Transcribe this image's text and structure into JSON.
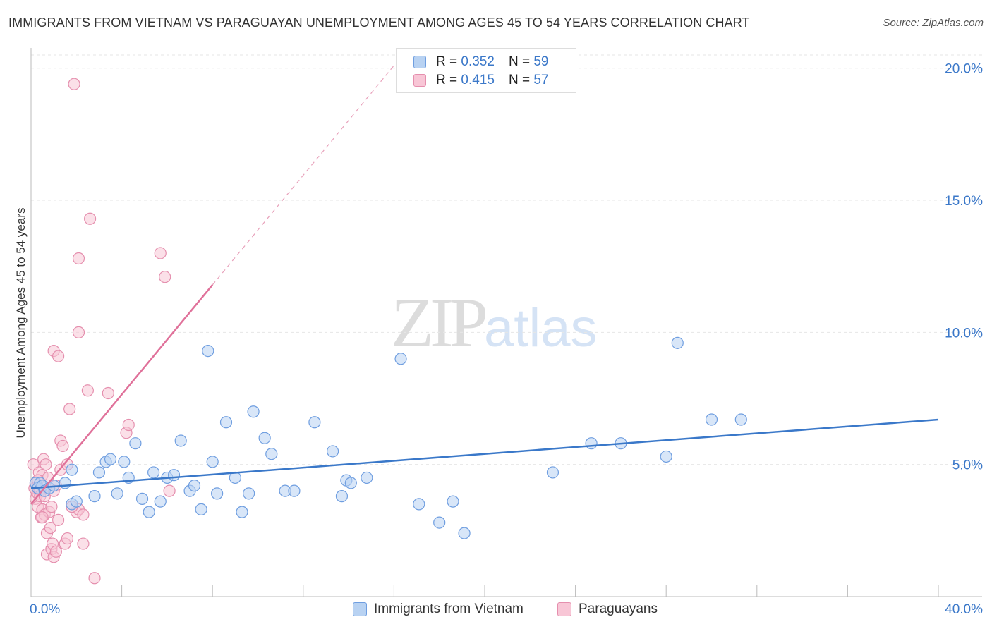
{
  "header": {
    "title": "IMMIGRANTS FROM VIETNAM VS PARAGUAYAN UNEMPLOYMENT AMONG AGES 45 TO 54 YEARS CORRELATION CHART",
    "source": "Source: ZipAtlas.com"
  },
  "watermark": {
    "zip": "ZIP",
    "atlas": "atlas"
  },
  "legend": {
    "r_label": "R =",
    "n_label": "N =",
    "vietnam": {
      "r": "0.352",
      "n": "59"
    },
    "paraguay": {
      "r": "0.415",
      "n": "57"
    }
  },
  "colors": {
    "vietnam_fill": "#b8d2f2",
    "vietnam_stroke": "#6f9ee0",
    "vietnam_line": "#3a78c9",
    "paraguay_fill": "#f8c6d6",
    "paraguay_stroke": "#e58fae",
    "paraguay_line": "#e0719a",
    "tick_label": "#3b78c9",
    "grid": "#e6e6e6"
  },
  "chart_data": {
    "type": "scatter",
    "title": "IMMIGRANTS FROM VIETNAM VS PARAGUAYAN UNEMPLOYMENT AMONG AGES 45 TO 54 YEARS CORRELATION CHART",
    "xlabel": "",
    "ylabel": "Unemployment Among Ages 45 to 54 years",
    "xlim": [
      0,
      40
    ],
    "ylim": [
      0,
      20.5
    ],
    "x_tick_labels": [
      "0.0%",
      "40.0%"
    ],
    "y_ticks": [
      5,
      10,
      15,
      20
    ],
    "y_tick_labels": [
      "5.0%",
      "10.0%",
      "15.0%",
      "20.0%"
    ],
    "series": [
      {
        "name": "Immigrants from Vietnam",
        "r": 0.352,
        "n": 59,
        "trend": {
          "x": [
            0,
            40
          ],
          "y": [
            4.1,
            6.7
          ]
        },
        "points": [
          [
            0.2,
            4.3
          ],
          [
            0.3,
            4.1
          ],
          [
            0.4,
            4.3
          ],
          [
            0.5,
            4.2
          ],
          [
            0.6,
            4.0
          ],
          [
            0.8,
            4.1
          ],
          [
            1.0,
            4.2
          ],
          [
            1.5,
            4.3
          ],
          [
            1.8,
            3.5
          ],
          [
            2.0,
            3.6
          ],
          [
            1.8,
            4.8
          ],
          [
            2.8,
            3.8
          ],
          [
            3.0,
            4.7
          ],
          [
            3.3,
            5.1
          ],
          [
            3.5,
            5.2
          ],
          [
            3.8,
            3.9
          ],
          [
            4.1,
            5.1
          ],
          [
            4.3,
            4.5
          ],
          [
            4.6,
            5.8
          ],
          [
            4.9,
            3.7
          ],
          [
            5.2,
            3.2
          ],
          [
            5.4,
            4.7
          ],
          [
            5.7,
            3.6
          ],
          [
            6.0,
            4.5
          ],
          [
            6.3,
            4.6
          ],
          [
            6.6,
            5.9
          ],
          [
            7.0,
            4.0
          ],
          [
            7.2,
            4.2
          ],
          [
            7.5,
            3.3
          ],
          [
            7.8,
            9.3
          ],
          [
            8.0,
            5.1
          ],
          [
            8.2,
            3.9
          ],
          [
            8.6,
            6.6
          ],
          [
            9.0,
            4.5
          ],
          [
            9.3,
            3.2
          ],
          [
            9.6,
            3.9
          ],
          [
            9.8,
            7.0
          ],
          [
            10.3,
            6.0
          ],
          [
            10.6,
            5.4
          ],
          [
            11.2,
            4.0
          ],
          [
            11.6,
            4.0
          ],
          [
            12.5,
            6.6
          ],
          [
            13.3,
            5.5
          ],
          [
            13.7,
            3.8
          ],
          [
            13.9,
            4.4
          ],
          [
            14.1,
            4.3
          ],
          [
            14.8,
            4.5
          ],
          [
            16.3,
            9.0
          ],
          [
            17.1,
            3.5
          ],
          [
            18.0,
            2.8
          ],
          [
            18.6,
            3.6
          ],
          [
            19.1,
            2.4
          ],
          [
            23.0,
            4.7
          ],
          [
            24.7,
            5.8
          ],
          [
            26.0,
            5.8
          ],
          [
            28.0,
            5.3
          ],
          [
            28.5,
            9.6
          ],
          [
            30.0,
            6.7
          ],
          [
            31.3,
            6.7
          ]
        ]
      },
      {
        "name": "Paraguayans",
        "r": 0.415,
        "n": 57,
        "trend": {
          "x": [
            0,
            8
          ],
          "y": [
            3.5,
            11.8
          ],
          "x_dashed_end": 16
        },
        "points": [
          [
            0.1,
            5.0
          ],
          [
            0.15,
            4.1
          ],
          [
            0.2,
            4.3
          ],
          [
            0.2,
            3.7
          ],
          [
            0.3,
            3.4
          ],
          [
            0.3,
            3.9
          ],
          [
            0.35,
            4.7
          ],
          [
            0.4,
            4.0
          ],
          [
            0.4,
            3.8
          ],
          [
            0.45,
            3.0
          ],
          [
            0.5,
            3.3
          ],
          [
            0.5,
            4.6
          ],
          [
            0.55,
            5.2
          ],
          [
            0.6,
            3.1
          ],
          [
            0.6,
            3.8
          ],
          [
            0.65,
            5.0
          ],
          [
            0.7,
            2.4
          ],
          [
            0.7,
            1.6
          ],
          [
            0.75,
            4.5
          ],
          [
            0.8,
            3.2
          ],
          [
            0.85,
            2.6
          ],
          [
            0.9,
            1.8
          ],
          [
            0.9,
            3.4
          ],
          [
            0.95,
            2.0
          ],
          [
            1.0,
            1.5
          ],
          [
            1.0,
            9.3
          ],
          [
            1.1,
            4.2
          ],
          [
            1.2,
            2.9
          ],
          [
            1.1,
            1.7
          ],
          [
            1.2,
            9.1
          ],
          [
            1.3,
            4.8
          ],
          [
            1.3,
            5.9
          ],
          [
            1.4,
            5.7
          ],
          [
            1.5,
            2.0
          ],
          [
            1.6,
            2.2
          ],
          [
            1.6,
            5.0
          ],
          [
            1.7,
            7.1
          ],
          [
            1.9,
            19.4
          ],
          [
            2.0,
            3.2
          ],
          [
            2.1,
            10.0
          ],
          [
            2.1,
            3.3
          ],
          [
            2.1,
            12.8
          ],
          [
            2.3,
            3.1
          ],
          [
            2.3,
            2.0
          ],
          [
            2.5,
            7.8
          ],
          [
            2.6,
            14.3
          ],
          [
            2.8,
            0.7
          ],
          [
            3.4,
            7.7
          ],
          [
            4.2,
            6.2
          ],
          [
            4.3,
            6.5
          ],
          [
            5.7,
            13.0
          ],
          [
            5.9,
            12.1
          ],
          [
            6.1,
            4.0
          ],
          [
            1.0,
            4.0
          ],
          [
            0.3,
            4.4
          ],
          [
            0.5,
            3.0
          ],
          [
            1.8,
            3.4
          ]
        ]
      }
    ]
  },
  "bottom_legend": {
    "vietnam_label": "Immigrants from Vietnam",
    "paraguay_label": "Paraguayans"
  }
}
